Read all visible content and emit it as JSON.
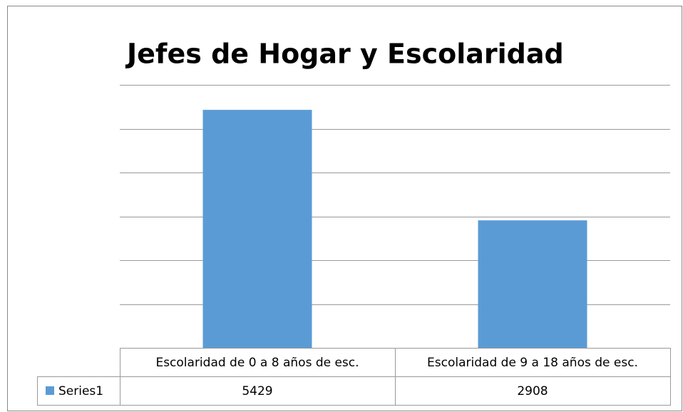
{
  "chart_data": {
    "type": "bar",
    "title": "Jefes de Hogar y Escolaridad",
    "categories": [
      "Escolaridad de 0 a 8 años de esc.",
      "Escolaridad de 9 a 18 años de esc."
    ],
    "series": [
      {
        "name": "Series1",
        "color": "#5b9bd5",
        "values": [
          5429,
          2908
        ]
      }
    ],
    "ylim": [
      0,
      6000
    ],
    "yticks": [
      0,
      1000,
      2000,
      3000,
      4000,
      5000,
      6000
    ],
    "grid": true,
    "data_table": true
  }
}
